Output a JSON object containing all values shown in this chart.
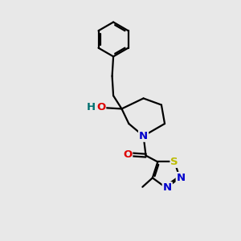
{
  "background_color": "#e8e8e8",
  "bond_color": "#000000",
  "atom_colors": {
    "N": "#0000cc",
    "O": "#dd0000",
    "S": "#bbbb00",
    "H": "#007070",
    "C": "#000000"
  },
  "lw": 1.6,
  "font_size": 9.5
}
